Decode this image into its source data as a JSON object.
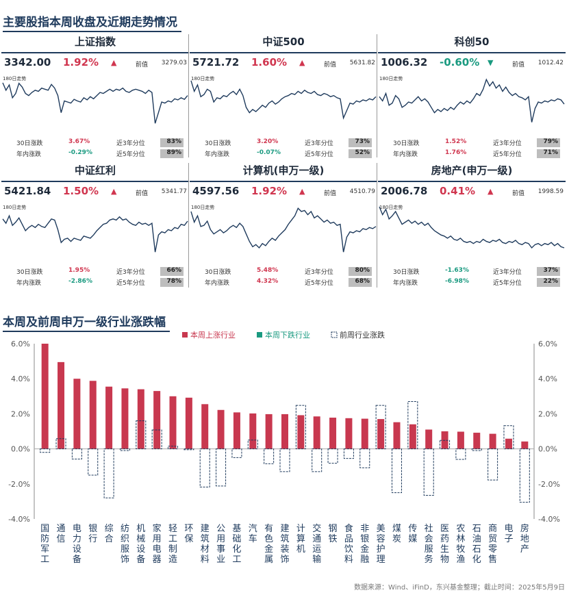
{
  "section1_title": "主要股指本周收盘及近期走势情况",
  "section2_title": "本周及前周申万一级行业涨跌幅",
  "footer": "数据来源：Wind、iFinD，东兴基金整理；截止时间：2025年5月9日",
  "labels": {
    "prev": "前值",
    "d30": "30日涨跌",
    "ytd": "年内涨跌",
    "p3y": "近3年分位",
    "p5y": "近5年分位"
  },
  "panels": [
    {
      "name": "上证指数",
      "close": "3342.00",
      "pct": "1.92%",
      "dir": "up",
      "arrow": "▲",
      "prev": "3279.03",
      "trend_label": "180日走势",
      "d30": "3.67%",
      "d30_dir": "up",
      "ytd": "-0.29%",
      "ytd_dir": "down",
      "p3y": "83%",
      "p5y": "89%",
      "trend": [
        0.86,
        0.72,
        0.82,
        0.58,
        0.66,
        0.85,
        0.78,
        0.66,
        0.62,
        0.68,
        0.72,
        0.7,
        0.76,
        0.74,
        0.72,
        0.83,
        0.76,
        0.62,
        0.3,
        0.52,
        0.5,
        0.48,
        0.55,
        0.52,
        0.5,
        0.58,
        0.54,
        0.6,
        0.56,
        0.62,
        0.68,
        0.66,
        0.7,
        0.74,
        0.7,
        0.74,
        0.72,
        0.76,
        0.7,
        0.68,
        0.72,
        0.74,
        0.72,
        0.7,
        0.66,
        0.72,
        0.68,
        0.1,
        0.3,
        0.5,
        0.48,
        0.52,
        0.5,
        0.56,
        0.54,
        0.58,
        0.55,
        0.62
      ]
    },
    {
      "name": "中证500",
      "close": "5721.72",
      "pct": "1.60%",
      "dir": "up",
      "arrow": "▲",
      "prev": "5631.82",
      "trend_label": "180日走势",
      "d30": "3.20%",
      "d30_dir": "up",
      "ytd": "-0.07%",
      "ytd_dir": "down",
      "p3y": "73%",
      "p5y": "52%",
      "trend": [
        0.9,
        0.7,
        0.82,
        0.6,
        0.64,
        0.74,
        0.7,
        0.5,
        0.58,
        0.56,
        0.62,
        0.6,
        0.66,
        0.7,
        0.64,
        0.74,
        0.62,
        0.4,
        0.3,
        0.36,
        0.32,
        0.38,
        0.44,
        0.4,
        0.48,
        0.52,
        0.46,
        0.5,
        0.56,
        0.6,
        0.62,
        0.66,
        0.64,
        0.7,
        0.66,
        0.72,
        0.68,
        0.66,
        0.7,
        0.64,
        0.62,
        0.66,
        0.64,
        0.6,
        0.62,
        0.58,
        0.56,
        0.2,
        0.34,
        0.48,
        0.46,
        0.52,
        0.5,
        0.54,
        0.52,
        0.56,
        0.54,
        0.6
      ]
    },
    {
      "name": "科创50",
      "close": "1006.32",
      "pct": "-0.60%",
      "dir": "down",
      "arrow": "▼",
      "prev": "1012.42",
      "trend_label": "180日走势",
      "d30": "1.52%",
      "d30_dir": "up",
      "ytd": "1.76%",
      "ytd_dir": "up",
      "p3y": "79%",
      "p5y": "71%",
      "trend": [
        0.6,
        0.52,
        0.66,
        0.44,
        0.48,
        0.62,
        0.56,
        0.4,
        0.44,
        0.5,
        0.48,
        0.54,
        0.6,
        0.52,
        0.56,
        0.5,
        0.4,
        0.3,
        0.36,
        0.32,
        0.38,
        0.34,
        0.4,
        0.36,
        0.44,
        0.5,
        0.46,
        0.52,
        0.48,
        0.56,
        0.66,
        0.62,
        0.74,
        0.92,
        0.8,
        0.88,
        0.76,
        0.82,
        0.7,
        0.78,
        0.68,
        0.62,
        0.66,
        0.6,
        0.58,
        0.54,
        0.6,
        0.12,
        0.38,
        0.5,
        0.48,
        0.52,
        0.5,
        0.54,
        0.52,
        0.56,
        0.54,
        0.46
      ]
    },
    {
      "name": "中证红利",
      "close": "5421.84",
      "pct": "1.50%",
      "dir": "up",
      "arrow": "▲",
      "prev": "5341.77",
      "trend_label": "180日走势",
      "d30": "1.95%",
      "d30_dir": "up",
      "ytd": "-2.86%",
      "ytd_dir": "down",
      "p3y": "66%",
      "p5y": "78%",
      "trend": [
        0.72,
        0.64,
        0.78,
        0.6,
        0.66,
        0.74,
        0.62,
        0.5,
        0.56,
        0.6,
        0.56,
        0.62,
        0.58,
        0.56,
        0.64,
        0.72,
        0.7,
        0.52,
        0.28,
        0.34,
        0.36,
        0.3,
        0.36,
        0.34,
        0.32,
        0.4,
        0.38,
        0.36,
        0.42,
        0.5,
        0.56,
        0.62,
        0.64,
        0.7,
        0.72,
        0.7,
        0.76,
        0.7,
        0.72,
        0.66,
        0.62,
        0.6,
        0.66,
        0.62,
        0.64,
        0.6,
        0.64,
        0.1,
        0.42,
        0.48,
        0.46,
        0.52,
        0.5,
        0.56,
        0.54,
        0.62,
        0.6,
        0.68
      ]
    },
    {
      "name": "计算机(申万一级)",
      "close": "4597.56",
      "pct": "1.92%",
      "dir": "up",
      "arrow": "▲",
      "prev": "4510.79",
      "trend_label": "180日走势",
      "d30": "5.48%",
      "d30_dir": "up",
      "ytd": "4.32%",
      "ytd_dir": "up",
      "p3y": "80%",
      "p5y": "68%",
      "trend": [
        0.86,
        0.66,
        0.78,
        0.58,
        0.6,
        0.68,
        0.52,
        0.44,
        0.48,
        0.52,
        0.46,
        0.5,
        0.56,
        0.6,
        0.56,
        0.64,
        0.58,
        0.44,
        0.3,
        0.2,
        0.24,
        0.18,
        0.26,
        0.22,
        0.3,
        0.36,
        0.32,
        0.4,
        0.46,
        0.52,
        0.62,
        0.7,
        0.78,
        0.92,
        0.86,
        0.88,
        0.8,
        0.86,
        0.74,
        0.78,
        0.72,
        0.66,
        0.7,
        0.64,
        0.66,
        0.6,
        0.62,
        0.1,
        0.38,
        0.48,
        0.46,
        0.5,
        0.48,
        0.54,
        0.52,
        0.56,
        0.54,
        0.58
      ]
    },
    {
      "name": "房地产(申万一级)",
      "close": "2006.78",
      "pct": "0.41%",
      "dir": "up",
      "arrow": "▲",
      "prev": "1998.59",
      "trend_label": "180日走势",
      "d30": "-1.63%",
      "d30_dir": "down",
      "ytd": "-6.98%",
      "ytd_dir": "down",
      "p3y": "37%",
      "p5y": "22%",
      "trend": [
        0.95,
        0.8,
        0.9,
        0.72,
        0.78,
        0.86,
        0.74,
        0.62,
        0.66,
        0.7,
        0.64,
        0.68,
        0.62,
        0.66,
        0.6,
        0.64,
        0.56,
        0.5,
        0.46,
        0.42,
        0.4,
        0.36,
        0.4,
        0.34,
        0.32,
        0.36,
        0.3,
        0.28,
        0.3,
        0.26,
        0.3,
        0.28,
        0.34,
        0.3,
        0.28,
        0.32,
        0.3,
        0.34,
        0.28,
        0.26,
        0.3,
        0.28,
        0.32,
        0.26,
        0.24,
        0.28,
        0.26,
        0.18,
        0.24,
        0.26,
        0.22,
        0.26,
        0.24,
        0.28,
        0.22,
        0.26,
        0.2,
        0.18
      ]
    }
  ],
  "chart_data": {
    "type": "bar",
    "title": "本周及前周申万一级行业涨跌幅",
    "legend": [
      "本周上涨行业",
      "本周下跌行业",
      "前周行业涨跌"
    ],
    "colors": {
      "up": "#c8384f",
      "down": "#1a9a80",
      "prev_border": "#1e3a5c"
    },
    "ylim": [
      -4.0,
      6.0
    ],
    "yticks": [
      "6.0%",
      "4.0%",
      "2.0%",
      "0.0%",
      "-2.0%",
      "-4.0%"
    ],
    "categories": [
      "国防军工",
      "通信",
      "电力设备",
      "银行",
      "综合",
      "纺织服饰",
      "机械设备",
      "家用电器",
      "轻工制造",
      "环保",
      "建筑材料",
      "公用事业",
      "基础化工",
      "汽车",
      "有色金属",
      "建筑装饰",
      "计算机",
      "交通运输",
      "钢铁",
      "食品饮料",
      "非银金融",
      "美容护理",
      "煤炭",
      "传媒",
      "社会服务",
      "医药生物",
      "农林牧渔",
      "石油石化",
      "商贸零售",
      "电子",
      "房地产"
    ],
    "series": [
      {
        "name": "本周上涨行业",
        "values": [
          6.0,
          4.95,
          4.0,
          3.88,
          3.55,
          3.45,
          3.4,
          3.3,
          3.0,
          2.92,
          2.55,
          2.22,
          2.08,
          2.02,
          1.98,
          1.98,
          1.92,
          1.85,
          1.78,
          1.75,
          1.72,
          1.7,
          1.52,
          1.4,
          1.1,
          1.0,
          0.98,
          0.92,
          0.86,
          0.58,
          0.42
        ]
      },
      {
        "name": "前周行业涨跌",
        "values": [
          -0.2,
          0.58,
          -0.58,
          -1.5,
          -2.8,
          -0.1,
          1.6,
          1.08,
          0.15,
          -0.05,
          -2.18,
          -2.12,
          -0.5,
          0.5,
          -0.85,
          -1.3,
          2.48,
          -1.3,
          -0.82,
          -0.55,
          -1.08,
          2.48,
          -2.5,
          2.7,
          -2.65,
          0.48,
          -0.6,
          -0.1,
          -1.78,
          1.32,
          -3.05
        ]
      }
    ]
  }
}
